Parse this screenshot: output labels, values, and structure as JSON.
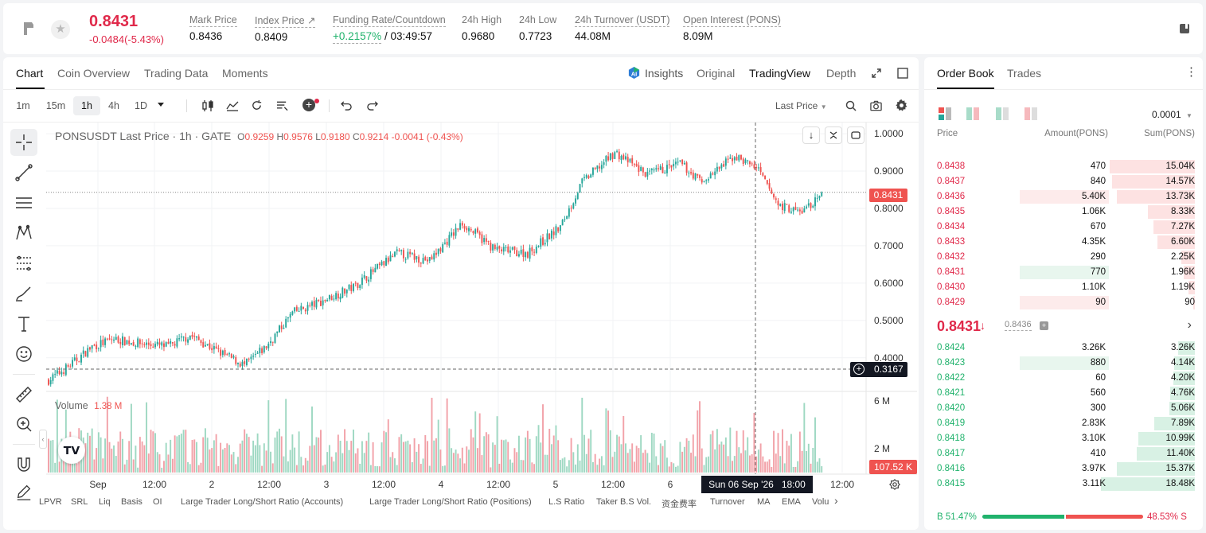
{
  "header": {
    "price": "0.8431",
    "change": "-0.0484(-5.43%)",
    "stats": [
      {
        "label": "Mark Price",
        "value": "0.8436"
      },
      {
        "label": "Index Price ↗",
        "value": "0.8409"
      },
      {
        "label": "Funding Rate/Countdown",
        "value_green": "+0.2157%",
        "value": "/ 03:49:57"
      },
      {
        "label": "24h High",
        "value": "0.9680"
      },
      {
        "label": "24h Low",
        "value": "0.7723"
      },
      {
        "label": "24h Turnover (USDT)",
        "value": "44.08M"
      },
      {
        "label": "Open Interest (PONS)",
        "value": "8.09M"
      }
    ]
  },
  "chart_tabs": [
    "Chart",
    "Coin Overview",
    "Trading Data",
    "Moments"
  ],
  "view_tabs": {
    "insights": "Insights",
    "original": "Original",
    "tradingview": "TradingView",
    "depth": "Depth"
  },
  "timeframes": [
    "1m",
    "15m",
    "1h",
    "4h",
    "1D"
  ],
  "price_type": "Last Price",
  "legend": {
    "symbol": "PONSUSDT Last Price · 1h · GATE",
    "o_lbl": "O",
    "o": "0.9259",
    "h_lbl": "H",
    "h": "0.9576",
    "l_lbl": "L",
    "l": "0.9180",
    "c_lbl": "C",
    "c": "0.9214",
    "chg": "-0.0041 (-0.43%)"
  },
  "volume": {
    "label": "Volume",
    "value": "1.38 M"
  },
  "price_labels": {
    "last": "0.8431",
    "cursor": "0.3167",
    "vol": "107.52 K"
  },
  "cursor_time": "Sun 06 Sep '26   18:00",
  "indicators": [
    "LPVR",
    "SRL",
    "Liq",
    "Basis",
    "OI",
    "Large Trader Long/Short Ratio (Accounts)",
    "Large Trader Long/Short Ratio (Positions)",
    "L.S Ratio",
    "Taker B.S Vol.",
    "资金费率",
    "Turnover",
    "MA",
    "EMA",
    "Volu"
  ],
  "orderbook": {
    "tabs": [
      "Order Book",
      "Trades"
    ],
    "precision": "0.0001",
    "headers": [
      "Price",
      "Amount(PONS)",
      "Sum(PONS)"
    ],
    "asks": [
      {
        "price": "0.8438",
        "amount": "470",
        "sum": "15.04K",
        "depth": 0.91,
        "hl": false
      },
      {
        "price": "0.8437",
        "amount": "840",
        "sum": "14.57K",
        "depth": 0.88,
        "hl": false
      },
      {
        "price": "0.8436",
        "amount": "5.40K",
        "sum": "13.73K",
        "depth": 0.83,
        "hl": true
      },
      {
        "price": "0.8435",
        "amount": "1.06K",
        "sum": "8.33K",
        "depth": 0.5,
        "hl": false
      },
      {
        "price": "0.8434",
        "amount": "670",
        "sum": "7.27K",
        "depth": 0.44,
        "hl": false
      },
      {
        "price": "0.8433",
        "amount": "4.35K",
        "sum": "6.60K",
        "depth": 0.4,
        "hl": false
      },
      {
        "price": "0.8432",
        "amount": "290",
        "sum": "2.25K",
        "depth": 0.14,
        "hl": false
      },
      {
        "price": "0.8431",
        "amount": "770",
        "sum": "1.96K",
        "depth": 0.12,
        "hl": true
      },
      {
        "price": "0.8430",
        "amount": "1.10K",
        "sum": "1.19K",
        "depth": 0.07,
        "hl": false
      },
      {
        "price": "0.8429",
        "amount": "90",
        "sum": "90",
        "depth": 0.01,
        "hl": true
      }
    ],
    "mid_price": "0.8431",
    "mid_mark": "0.8436",
    "bids": [
      {
        "price": "0.8424",
        "amount": "3.26K",
        "sum": "3.26K",
        "depth": 0.18,
        "hl": false
      },
      {
        "price": "0.8423",
        "amount": "880",
        "sum": "4.14K",
        "depth": 0.22,
        "hl": true
      },
      {
        "price": "0.8422",
        "amount": "60",
        "sum": "4.20K",
        "depth": 0.23,
        "hl": false
      },
      {
        "price": "0.8421",
        "amount": "560",
        "sum": "4.76K",
        "depth": 0.26,
        "hl": false
      },
      {
        "price": "0.8420",
        "amount": "300",
        "sum": "5.06K",
        "depth": 0.27,
        "hl": false
      },
      {
        "price": "0.8419",
        "amount": "2.83K",
        "sum": "7.89K",
        "depth": 0.43,
        "hl": false
      },
      {
        "price": "0.8418",
        "amount": "3.10K",
        "sum": "10.99K",
        "depth": 0.6,
        "hl": false
      },
      {
        "price": "0.8417",
        "amount": "410",
        "sum": "11.40K",
        "depth": 0.62,
        "hl": false
      },
      {
        "price": "0.8416",
        "amount": "3.97K",
        "sum": "15.37K",
        "depth": 0.83,
        "hl": false
      },
      {
        "price": "0.8415",
        "amount": "3.11K",
        "sum": "18.48K",
        "depth": 1.0,
        "hl": false
      }
    ],
    "buy_label": "B 51.47%",
    "sell_label": "48.53% S",
    "buy_pct": 51.47
  },
  "colors": {
    "up": "#26a69a",
    "down": "#ef5350",
    "up_light": "#e8f6ee",
    "down_light": "#fdebeb",
    "price_red": "#e0294a",
    "green_text": "#20b26c"
  },
  "chart_data": {
    "type": "candlestick",
    "symbol": "PONSUSDT",
    "interval": "1h",
    "y_ticks": [
      "1.0000",
      "0.9000",
      "0.8000",
      "0.7000",
      "0.6000",
      "0.5000",
      "0.4000"
    ],
    "vol_ticks": [
      "6 M",
      "2 M"
    ],
    "x_ticks": [
      "Sep",
      "12:00",
      "2",
      "12:00",
      "3",
      "12:00",
      "4",
      "12:00",
      "5",
      "12:00",
      "6",
      "12:00"
    ],
    "ylim": [
      0.31,
      1.03
    ],
    "trend_points": [
      [
        0,
        0.34
      ],
      [
        10,
        0.38
      ],
      [
        20,
        0.43
      ],
      [
        30,
        0.45
      ],
      [
        40,
        0.44
      ],
      [
        55,
        0.43
      ],
      [
        65,
        0.46
      ],
      [
        80,
        0.41
      ],
      [
        90,
        0.38
      ],
      [
        100,
        0.43
      ],
      [
        112,
        0.52
      ],
      [
        125,
        0.55
      ],
      [
        140,
        0.59
      ],
      [
        160,
        0.68
      ],
      [
        175,
        0.66
      ],
      [
        190,
        0.76
      ],
      [
        205,
        0.69
      ],
      [
        220,
        0.68
      ],
      [
        235,
        0.75
      ],
      [
        245,
        0.87
      ],
      [
        260,
        0.95
      ],
      [
        275,
        0.89
      ],
      [
        290,
        0.92
      ],
      [
        300,
        0.87
      ],
      [
        315,
        0.94
      ],
      [
        325,
        0.91
      ],
      [
        335,
        0.81
      ],
      [
        345,
        0.79
      ],
      [
        355,
        0.83
      ]
    ],
    "candle_count": 356,
    "last_close": 0.8431
  }
}
